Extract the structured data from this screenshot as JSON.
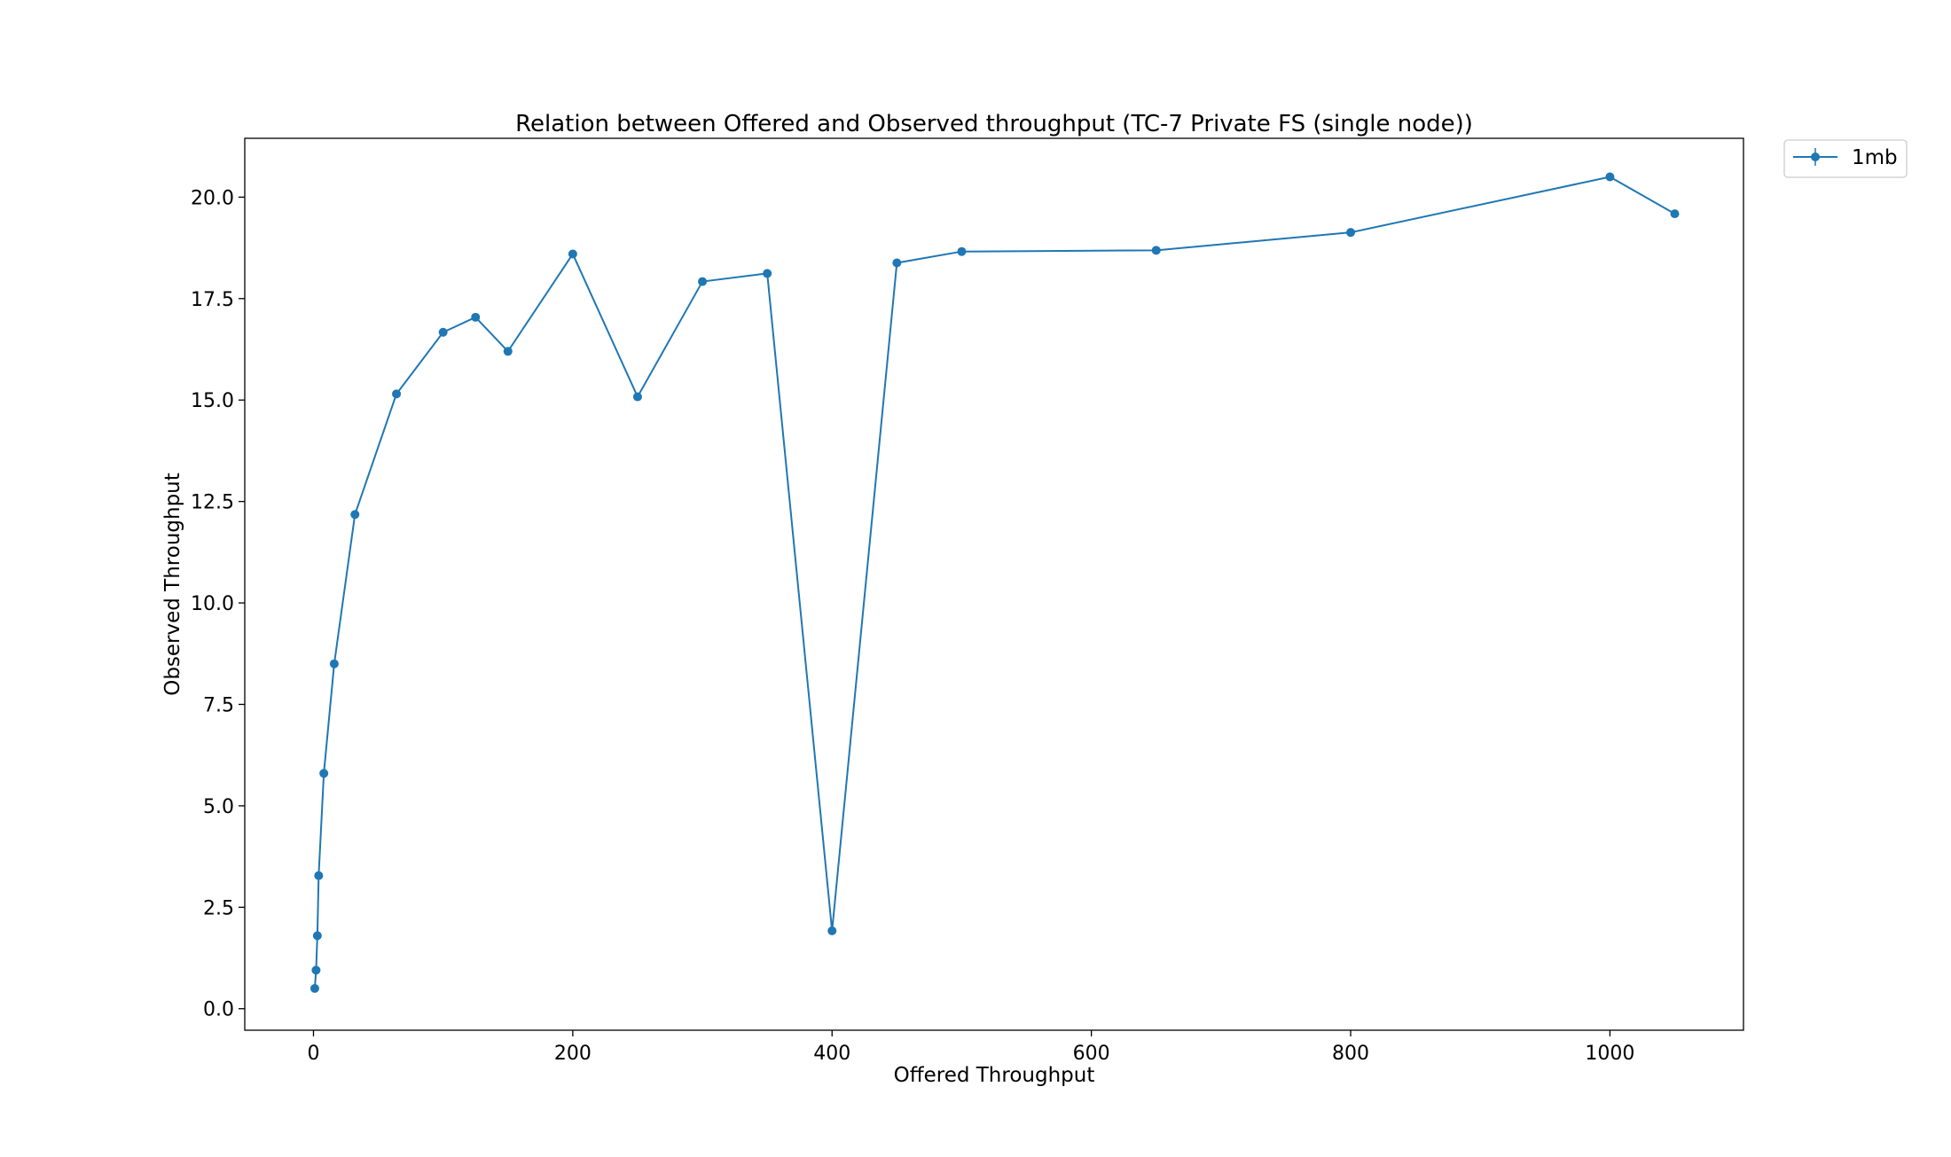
{
  "chart_data": {
    "type": "line",
    "title": "Relation between Offered and Observed throughput (TC-7  Private FS (single node))",
    "xlabel": "Offered Throughput",
    "ylabel": "Observed Throughput",
    "xlim": [
      -53,
      1103
    ],
    "ylim": [
      -0.53,
      21.45
    ],
    "xticks": [
      0,
      200,
      400,
      600,
      800,
      1000
    ],
    "xtick_labels": [
      "0",
      "200",
      "400",
      "600",
      "800",
      "1000"
    ],
    "yticks": [
      0.0,
      2.5,
      5.0,
      7.5,
      10.0,
      12.5,
      15.0,
      17.5,
      20.0
    ],
    "ytick_labels": [
      "0.0",
      "2.5",
      "5.0",
      "7.5",
      "10.0",
      "12.5",
      "15.0",
      "17.5",
      "20.0"
    ],
    "grid": false,
    "legend_position": "outside-top-right",
    "series": [
      {
        "name": "1mb",
        "color": "#1f77b4",
        "marker": "circle",
        "x": [
          1,
          2,
          3,
          4,
          8,
          16,
          32,
          64,
          100,
          125,
          150,
          200,
          250,
          300,
          350,
          400,
          450,
          500,
          650,
          800,
          1000,
          1050
        ],
        "y": [
          0.5,
          0.95,
          1.8,
          3.28,
          5.8,
          8.5,
          12.18,
          15.15,
          16.67,
          17.04,
          16.2,
          18.6,
          15.08,
          17.92,
          18.12,
          1.92,
          18.38,
          18.66,
          18.69,
          19.13,
          20.5,
          19.59
        ]
      }
    ]
  }
}
